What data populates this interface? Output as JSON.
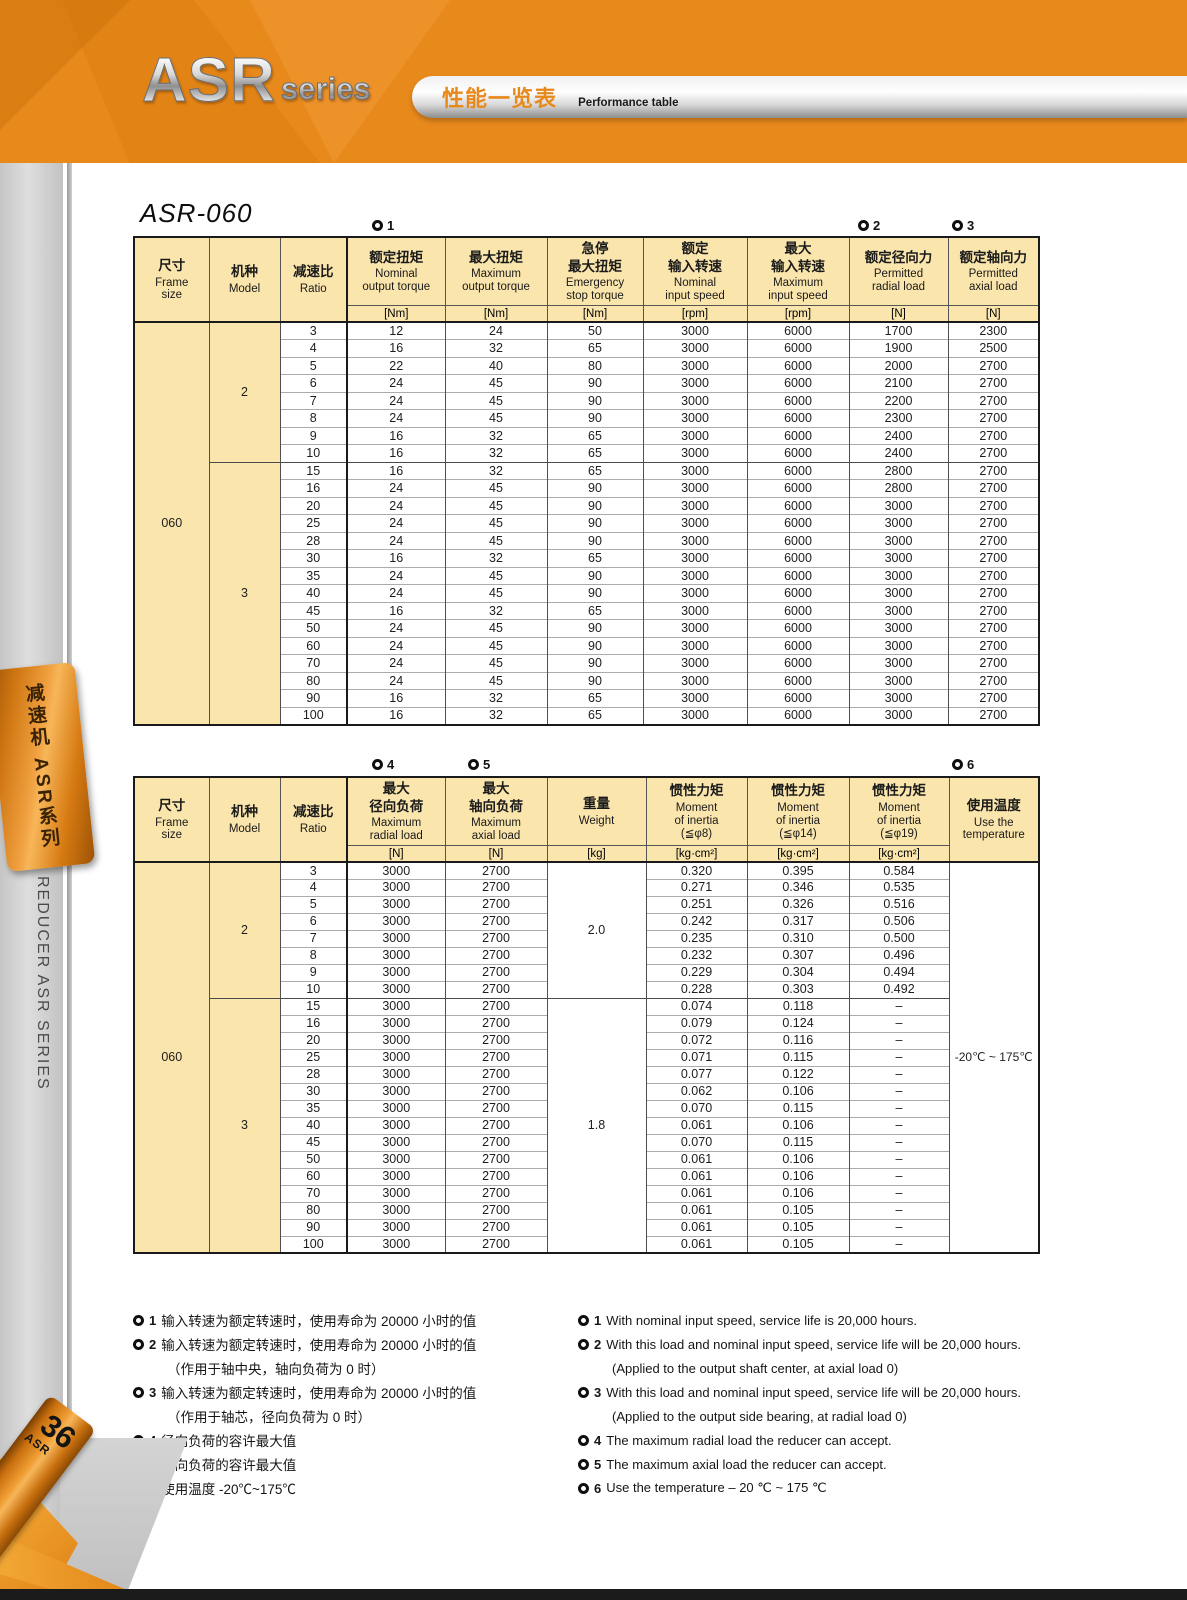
{
  "header": {
    "brand": "ASR",
    "brand_suffix": "series",
    "title_zh": "性能一览表",
    "title_en": "Performance table",
    "accent_color": "#E8891C"
  },
  "sidebar": {
    "tab_label": "减速机  ASR系列",
    "series_label": "REDUCER  ASR  SERIES",
    "page_number": "36",
    "page_label": "ASR"
  },
  "section": {
    "title": "ASR-060"
  },
  "marks": [
    {
      "icon": "gear-flower",
      "label": "1"
    },
    {
      "icon": "gear-flower",
      "label": "2"
    },
    {
      "icon": "gear-flower",
      "label": "3"
    },
    {
      "icon": "gear-flower",
      "label": "4"
    },
    {
      "icon": "gear-flower",
      "label": "5"
    },
    {
      "icon": "gear-flower",
      "label": "6"
    }
  ],
  "colors": {
    "header_cell_bg": "#FAE5AC",
    "banner_orange": "#E8891C"
  },
  "table1": {
    "frame_size": "060",
    "columns": [
      {
        "zh": "尺寸",
        "en": "Frame\nsize"
      },
      {
        "zh": "机种",
        "en": "Model"
      },
      {
        "zh": "减速比",
        "en": "Ratio"
      },
      {
        "zh": "额定扭矩",
        "en": "Nominal\noutput torque",
        "unit": "[Nm]"
      },
      {
        "zh": "最大扭矩",
        "en": "Maximum\noutput torque",
        "unit": "[Nm]"
      },
      {
        "zh": "急停\n最大扭矩",
        "en": "Emergency\nstop torque",
        "unit": "[Nm]"
      },
      {
        "zh": "额定\n输入转速",
        "en": "Nominal\ninput speed",
        "unit": "[rpm]"
      },
      {
        "zh": "最大\n输入转速",
        "en": "Maximum\ninput speed",
        "unit": "[rpm]"
      },
      {
        "zh": "额定径向力",
        "en": "Permitted\nradial load",
        "unit": "[N]"
      },
      {
        "zh": "额定轴向力",
        "en": "Permitted\naxial load",
        "unit": "[N]"
      }
    ],
    "groups": [
      {
        "model": "2",
        "rows": [
          [
            "3",
            "12",
            "24",
            "50",
            "3000",
            "6000",
            "1700",
            "2300"
          ],
          [
            "4",
            "16",
            "32",
            "65",
            "3000",
            "6000",
            "1900",
            "2500"
          ],
          [
            "5",
            "22",
            "40",
            "80",
            "3000",
            "6000",
            "2000",
            "2700"
          ],
          [
            "6",
            "24",
            "45",
            "90",
            "3000",
            "6000",
            "2100",
            "2700"
          ],
          [
            "7",
            "24",
            "45",
            "90",
            "3000",
            "6000",
            "2200",
            "2700"
          ],
          [
            "8",
            "24",
            "45",
            "90",
            "3000",
            "6000",
            "2300",
            "2700"
          ],
          [
            "9",
            "16",
            "32",
            "65",
            "3000",
            "6000",
            "2400",
            "2700"
          ],
          [
            "10",
            "16",
            "32",
            "65",
            "3000",
            "6000",
            "2400",
            "2700"
          ]
        ]
      },
      {
        "model": "3",
        "rows": [
          [
            "15",
            "16",
            "32",
            "65",
            "3000",
            "6000",
            "2800",
            "2700"
          ],
          [
            "16",
            "24",
            "45",
            "90",
            "3000",
            "6000",
            "2800",
            "2700"
          ],
          [
            "20",
            "24",
            "45",
            "90",
            "3000",
            "6000",
            "3000",
            "2700"
          ],
          [
            "25",
            "24",
            "45",
            "90",
            "3000",
            "6000",
            "3000",
            "2700"
          ],
          [
            "28",
            "24",
            "45",
            "90",
            "3000",
            "6000",
            "3000",
            "2700"
          ],
          [
            "30",
            "16",
            "32",
            "65",
            "3000",
            "6000",
            "3000",
            "2700"
          ],
          [
            "35",
            "24",
            "45",
            "90",
            "3000",
            "6000",
            "3000",
            "2700"
          ],
          [
            "40",
            "24",
            "45",
            "90",
            "3000",
            "6000",
            "3000",
            "2700"
          ],
          [
            "45",
            "16",
            "32",
            "65",
            "3000",
            "6000",
            "3000",
            "2700"
          ],
          [
            "50",
            "24",
            "45",
            "90",
            "3000",
            "6000",
            "3000",
            "2700"
          ],
          [
            "60",
            "24",
            "45",
            "90",
            "3000",
            "6000",
            "3000",
            "2700"
          ],
          [
            "70",
            "24",
            "45",
            "90",
            "3000",
            "6000",
            "3000",
            "2700"
          ],
          [
            "80",
            "24",
            "45",
            "90",
            "3000",
            "6000",
            "3000",
            "2700"
          ],
          [
            "90",
            "16",
            "32",
            "65",
            "3000",
            "6000",
            "3000",
            "2700"
          ],
          [
            "100",
            "16",
            "32",
            "65",
            "3000",
            "6000",
            "3000",
            "2700"
          ]
        ]
      }
    ]
  },
  "table2": {
    "frame_size": "060",
    "temperature": "-20℃ ~ 175℃",
    "columns": [
      {
        "zh": "尺寸",
        "en": "Frame\nsize"
      },
      {
        "zh": "机种",
        "en": "Model"
      },
      {
        "zh": "减速比",
        "en": "Ratio"
      },
      {
        "zh": "最大\n径向负荷",
        "en": "Maximum\nradial load",
        "unit": "[N]"
      },
      {
        "zh": "最大\n轴向负荷",
        "en": "Maximum\naxial load",
        "unit": "[N]"
      },
      {
        "zh": "重量",
        "en": "Weight",
        "unit": "[kg]"
      },
      {
        "zh": "惯性力矩",
        "en": "Moment\nof inertia\n(≦φ8)",
        "unit": "[kg·cm²]"
      },
      {
        "zh": "惯性力矩",
        "en": "Moment\nof inertia\n(≦φ14)",
        "unit": "[kg·cm²]"
      },
      {
        "zh": "惯性力矩",
        "en": "Moment\nof inertia\n(≦φ19)",
        "unit": "[kg·cm²]"
      },
      {
        "zh": "使用温度",
        "en": "Use the\ntemperature"
      }
    ],
    "groups": [
      {
        "model": "2",
        "weight": "2.0",
        "rows": [
          [
            "3",
            "3000",
            "2700",
            "0.320",
            "0.395",
            "0.584"
          ],
          [
            "4",
            "3000",
            "2700",
            "0.271",
            "0.346",
            "0.535"
          ],
          [
            "5",
            "3000",
            "2700",
            "0.251",
            "0.326",
            "0.516"
          ],
          [
            "6",
            "3000",
            "2700",
            "0.242",
            "0.317",
            "0.506"
          ],
          [
            "7",
            "3000",
            "2700",
            "0.235",
            "0.310",
            "0.500"
          ],
          [
            "8",
            "3000",
            "2700",
            "0.232",
            "0.307",
            "0.496"
          ],
          [
            "9",
            "3000",
            "2700",
            "0.229",
            "0.304",
            "0.494"
          ],
          [
            "10",
            "3000",
            "2700",
            "0.228",
            "0.303",
            "0.492"
          ]
        ]
      },
      {
        "model": "3",
        "weight": "1.8",
        "rows": [
          [
            "15",
            "3000",
            "2700",
            "0.074",
            "0.118",
            "–"
          ],
          [
            "16",
            "3000",
            "2700",
            "0.079",
            "0.124",
            "–"
          ],
          [
            "20",
            "3000",
            "2700",
            "0.072",
            "0.116",
            "–"
          ],
          [
            "25",
            "3000",
            "2700",
            "0.071",
            "0.115",
            "–"
          ],
          [
            "28",
            "3000",
            "2700",
            "0.077",
            "0.122",
            "–"
          ],
          [
            "30",
            "3000",
            "2700",
            "0.062",
            "0.106",
            "–"
          ],
          [
            "35",
            "3000",
            "2700",
            "0.070",
            "0.115",
            "–"
          ],
          [
            "40",
            "3000",
            "2700",
            "0.061",
            "0.106",
            "–"
          ],
          [
            "45",
            "3000",
            "2700",
            "0.070",
            "0.115",
            "–"
          ],
          [
            "50",
            "3000",
            "2700",
            "0.061",
            "0.106",
            "–"
          ],
          [
            "60",
            "3000",
            "2700",
            "0.061",
            "0.106",
            "–"
          ],
          [
            "70",
            "3000",
            "2700",
            "0.061",
            "0.106",
            "–"
          ],
          [
            "80",
            "3000",
            "2700",
            "0.061",
            "0.105",
            "–"
          ],
          [
            "90",
            "3000",
            "2700",
            "0.061",
            "0.105",
            "–"
          ],
          [
            "100",
            "3000",
            "2700",
            "0.061",
            "0.105",
            "–"
          ]
        ]
      }
    ]
  },
  "footnotes": {
    "zh": [
      {
        "num": "1",
        "text": "输入转速为额定转速时，使用寿命为 20000 小时的值"
      },
      {
        "num": "2",
        "text": "输入转速为额定转速时，使用寿命为 20000 小时的值",
        "sub": "（作用于轴中央，轴向负荷为 0 时）"
      },
      {
        "num": "3",
        "text": "输入转速为额定转速时，使用寿命为 20000 小时的值",
        "sub": "（作用于轴芯，径向负荷为 0 时）"
      },
      {
        "num": "4",
        "text": "径向负荷的容许最大值"
      },
      {
        "num": "5",
        "text": "轴向负荷的容许最大值"
      },
      {
        "num": "6",
        "text": "使用温度 -20℃~175℃"
      }
    ],
    "en": [
      {
        "num": "1",
        "text": "With nominal input speed, service life is 20,000 hours."
      },
      {
        "num": "2",
        "text": "With this load and nominal input speed, service life will be 20,000 hours.",
        "sub": "(Applied to the output shaft center, at axial load 0)"
      },
      {
        "num": "3",
        "text": "With this load and nominal input speed, service life will be 20,000 hours.",
        "sub": "(Applied to the output side bearing, at radial load 0)"
      },
      {
        "num": "4",
        "text": "The maximum radial load the reducer can accept."
      },
      {
        "num": "5",
        "text": "The maximum axial load the reducer can accept."
      },
      {
        "num": "6",
        "text": "Use the temperature – 20 ℃ ~ 175 ℃"
      }
    ]
  }
}
